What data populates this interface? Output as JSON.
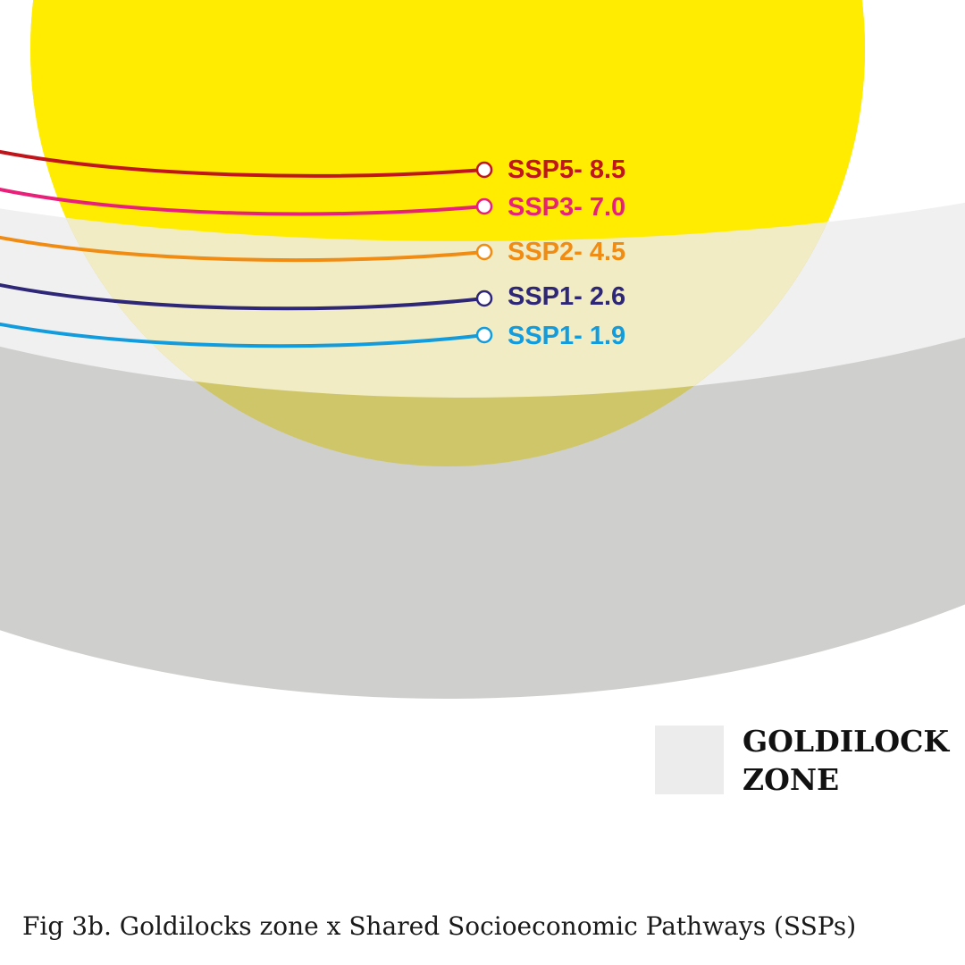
{
  "colors": {
    "outer_ring": "#cfcfcd",
    "goldilocks_zone": "#f0f0f0",
    "inner_band": "#ffffff",
    "sun": "#ffec00",
    "sun_in_zone": "#f1ecc3",
    "sun_in_ring": "#cfc66a",
    "legend_swatch": "#ececec"
  },
  "pathways": [
    {
      "label": "SSP5- 8.5",
      "color": "#c0161b"
    },
    {
      "label": "SSP3- 7.0",
      "color": "#e8207a"
    },
    {
      "label": "SSP2- 4.5",
      "color": "#f08c14"
    },
    {
      "label": "SSP1- 2.6",
      "color": "#2e2677"
    },
    {
      "label": "SSP1- 1.9",
      "color": "#129cdd"
    }
  ],
  "legend": {
    "line1": "GOLDILOCK",
    "line2": "ZONE"
  },
  "caption": "Fig 3b. Goldilocks zone x Shared Socioeconomic Pathways (SSPs)"
}
